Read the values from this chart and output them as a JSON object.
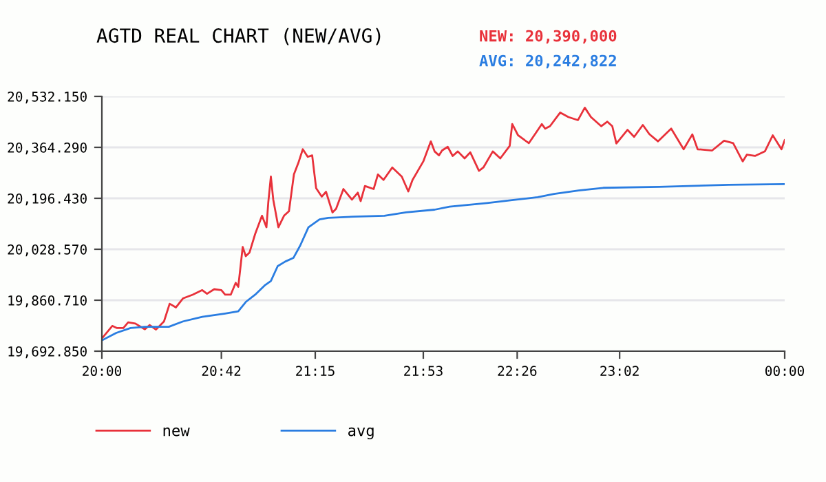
{
  "chart_data": {
    "type": "line",
    "title": "AGTD REAL CHART (NEW/AVG)",
    "annotations": [
      "NEW: 20,390,000",
      "AVG: 20,242,822"
    ],
    "xlim": [
      20,
      24
    ],
    "xticks": [
      {
        "value": 20,
        "label": "20:00"
      },
      {
        "value": 20.7,
        "label": "20:42"
      },
      {
        "value": 21.25,
        "label": "21:15"
      },
      {
        "value": 21.883,
        "label": "21:53"
      },
      {
        "value": 22.433,
        "label": "22:26"
      },
      {
        "value": 23.033,
        "label": "23:02"
      },
      {
        "value": 24,
        "label": "00:00"
      }
    ],
    "ylim": [
      19692.85,
      20532.15
    ],
    "yticks": [
      {
        "value": 19692.85,
        "label": "19,692.850"
      },
      {
        "value": 19860.71,
        "label": "19,860.710"
      },
      {
        "value": 20028.57,
        "label": "20,028.570"
      },
      {
        "value": 20196.43,
        "label": "20,196.430"
      },
      {
        "value": 20364.29,
        "label": "20,364.290"
      },
      {
        "value": 20532.15,
        "label": "20,532.150"
      }
    ],
    "grid": "y",
    "legend": "bottom left",
    "line_style": "solid",
    "marker": "none",
    "series": [
      {
        "name": "new",
        "color": "#e8313a",
        "x": [
          20.005,
          20.061,
          20.089,
          20.126,
          20.154,
          20.196,
          20.252,
          20.28,
          20.317,
          20.364,
          20.397,
          20.434,
          20.476,
          20.532,
          20.588,
          20.616,
          20.658,
          20.7,
          20.722,
          20.755,
          20.784,
          20.799,
          20.825,
          20.843,
          20.865,
          20.898,
          20.938,
          20.964,
          20.975,
          20.99,
          21.004,
          21.034,
          21.067,
          21.096,
          21.125,
          21.151,
          21.177,
          21.206,
          21.232,
          21.255,
          21.288,
          21.313,
          21.351,
          21.372,
          21.415,
          21.465,
          21.499,
          21.516,
          21.541,
          21.592,
          21.617,
          21.65,
          21.701,
          21.757,
          21.795,
          21.82,
          21.883,
          21.927,
          21.949,
          21.975,
          21.993,
          22.026,
          22.055,
          22.085,
          22.125,
          22.158,
          22.209,
          22.235,
          22.29,
          22.334,
          22.389,
          22.404,
          22.438,
          22.501,
          22.541,
          22.577,
          22.597,
          22.625,
          22.685,
          22.733,
          22.789,
          22.829,
          22.865,
          22.925,
          22.961,
          22.99,
          23.014,
          23.079,
          23.118,
          23.169,
          23.207,
          23.258,
          23.335,
          23.408,
          23.459,
          23.49,
          23.575,
          23.645,
          23.698,
          23.754,
          23.778,
          23.826,
          23.884,
          23.93,
          23.981,
          24
        ],
        "values": [
          19738,
          19776,
          19769,
          19769,
          19788,
          19784,
          19765,
          19779,
          19764,
          19791,
          19849,
          19837,
          19867,
          19879,
          19894,
          19882,
          19897,
          19894,
          19879,
          19879,
          19918,
          19905,
          20036,
          20006,
          20018,
          20079,
          20139,
          20101,
          20184,
          20268,
          20192,
          20101,
          20139,
          20154,
          20275,
          20313,
          20358,
          20333,
          20338,
          20230,
          20202,
          20218,
          20150,
          20162,
          20227,
          20192,
          20215,
          20187,
          20237,
          20227,
          20275,
          20257,
          20298,
          20268,
          20219,
          20257,
          20318,
          20384,
          20351,
          20338,
          20354,
          20366,
          20336,
          20351,
          20328,
          20348,
          20287,
          20298,
          20351,
          20328,
          20369,
          20441,
          20404,
          20378,
          20411,
          20441,
          20426,
          20434,
          20479,
          20464,
          20454,
          20495,
          20464,
          20434,
          20449,
          20434,
          20377,
          20422,
          20399,
          20438,
          20408,
          20384,
          20426,
          20358,
          20407,
          20358,
          20354,
          20386,
          20378,
          20318,
          20340,
          20336,
          20351,
          20404,
          20358,
          20388
        ]
      },
      {
        "name": "avg",
        "color": "#2a7de1",
        "x": [
          20.005,
          20.084,
          20.168,
          20.252,
          20.392,
          20.476,
          20.588,
          20.722,
          20.799,
          20.843,
          20.898,
          20.953,
          20.99,
          21.03,
          21.074,
          21.122,
          21.162,
          21.21,
          21.275,
          21.326,
          21.478,
          21.655,
          21.782,
          21.949,
          22.037,
          22.257,
          22.411,
          22.553,
          22.649,
          22.793,
          22.937,
          23.265,
          23.671,
          24
        ],
        "values": [
          19730,
          19753,
          19769,
          19773,
          19773,
          19791,
          19806,
          19817,
          19824,
          19855,
          19879,
          19909,
          19924,
          19973,
          19988,
          20000,
          20041,
          20101,
          20127,
          20132,
          20136,
          20139,
          20150,
          20159,
          20169,
          20181,
          20191,
          20200,
          20211,
          20222,
          20231,
          20234,
          20241,
          20243
        ]
      }
    ]
  }
}
